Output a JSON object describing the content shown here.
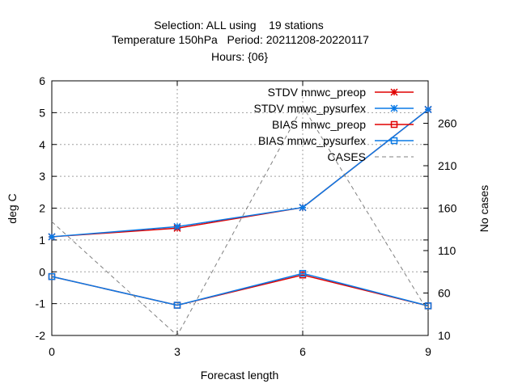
{
  "chart_data": {
    "type": "line",
    "title_lines": [
      "Selection: ALL using    19 stations",
      "Temperature 150hPa   Period: 20211208-20220117",
      "Hours: {06}"
    ],
    "xlabel": "Forecast length",
    "ylabel": "deg C",
    "y2label": "No cases",
    "x": [
      0,
      3,
      6,
      9
    ],
    "xlim": [
      0,
      9
    ],
    "ylim": [
      -2,
      6
    ],
    "y2lim": [
      10,
      310
    ],
    "x_ticks": [
      "0",
      "3",
      "6",
      "9"
    ],
    "y_ticks": [
      "-2",
      "-1",
      "0",
      "1",
      "2",
      "3",
      "4",
      "5",
      "6"
    ],
    "y2_ticks": [
      "10",
      "60",
      "110",
      "160",
      "210",
      "260"
    ],
    "legend_position": "top-right",
    "series": [
      {
        "name": "STDV mnwc_preop",
        "axis": "y",
        "color": "#e00000",
        "marker": "x",
        "values": [
          1.1,
          1.37,
          2.02,
          5.1
        ]
      },
      {
        "name": "STDV mnwc_pysurfex",
        "axis": "y",
        "color": "#0a7ae6",
        "marker": "x",
        "values": [
          1.1,
          1.42,
          2.02,
          5.1
        ]
      },
      {
        "name": "BIAS mnwc_preop",
        "axis": "y",
        "color": "#e00000",
        "marker": "square",
        "values": [
          -0.15,
          -1.05,
          -0.1,
          -1.07
        ]
      },
      {
        "name": "BIAS mnwc_pysurfex",
        "axis": "y",
        "color": "#0a7ae6",
        "marker": "square",
        "values": [
          -0.15,
          -1.05,
          -0.05,
          -1.07
        ]
      },
      {
        "name": "CASES",
        "axis": "y2",
        "color": "#808080",
        "marker": "none",
        "dashed": true,
        "values": [
          144,
          10,
          280,
          38
        ]
      }
    ]
  }
}
